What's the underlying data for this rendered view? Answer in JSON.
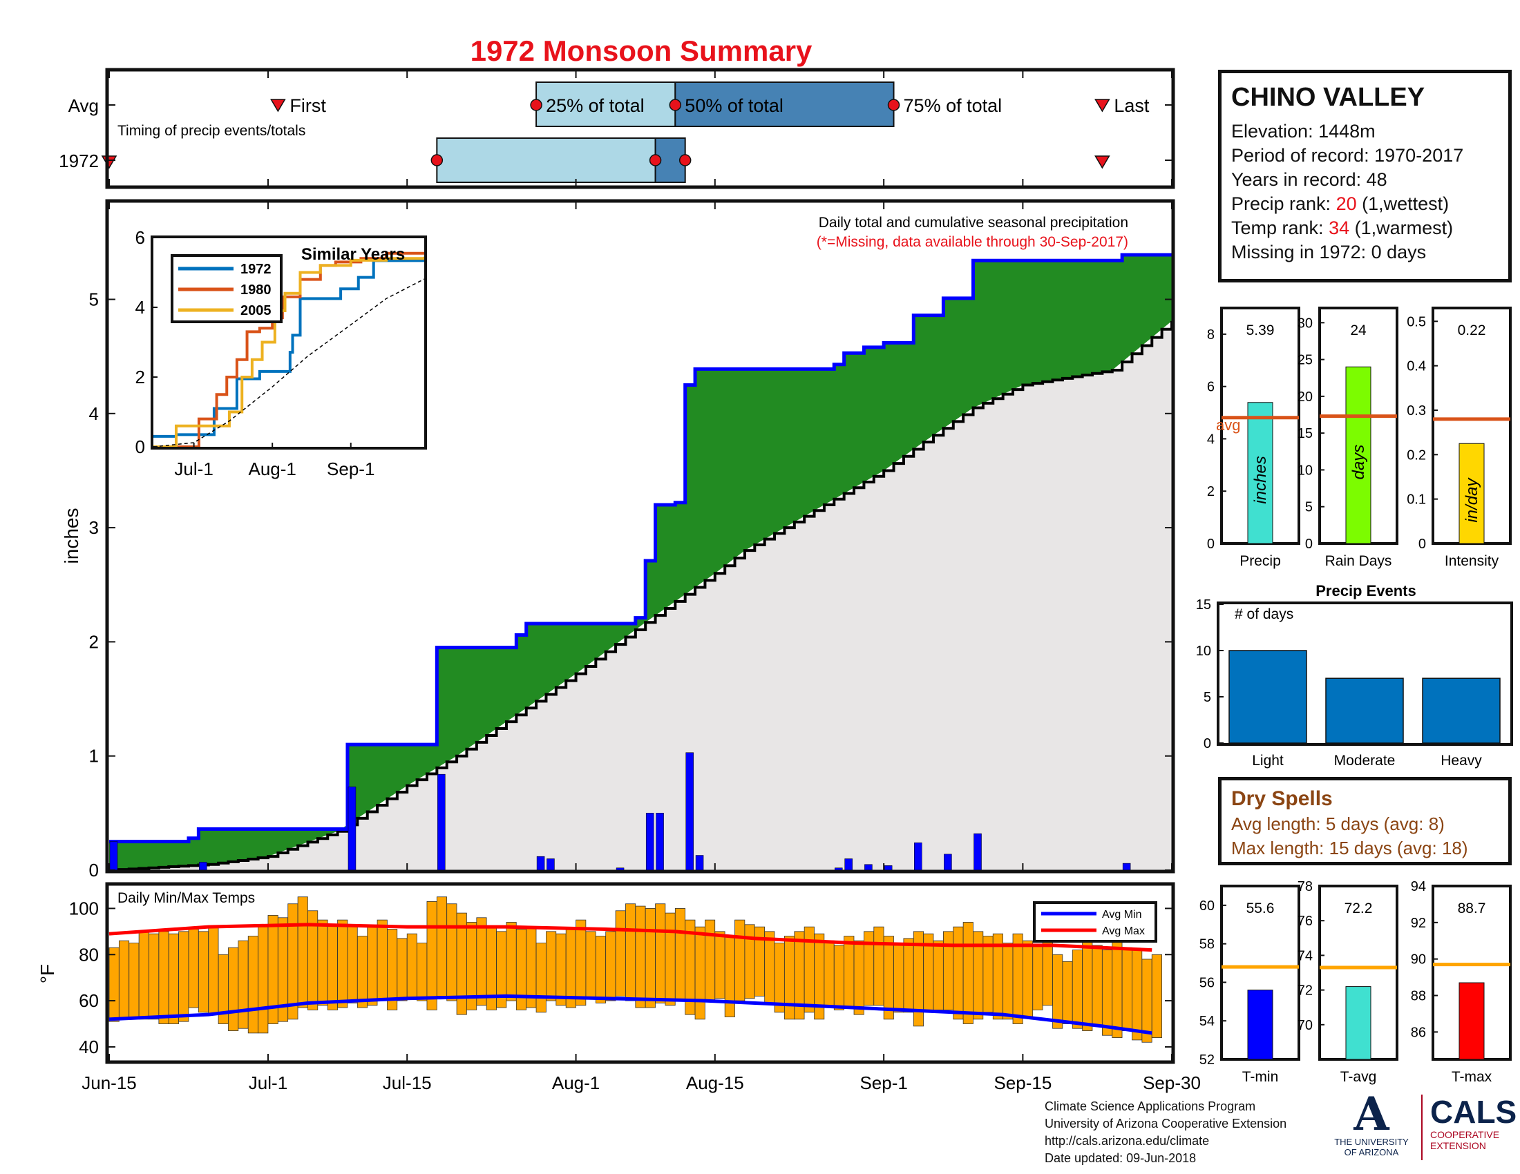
{
  "title": "1972 Monsoon Summary",
  "station": {
    "name": "CHINO VALLEY",
    "elevation_label": "Elevation:",
    "elevation": "1448m",
    "period_label": "Period of record:",
    "period": "1970-2017",
    "years_label": "Years in record:",
    "years": "48",
    "precip_rank_label": "Precip rank:",
    "precip_rank": "20",
    "precip_rank_note": "(1,wettest)",
    "temp_rank_label": "Temp rank:",
    "temp_rank": "34",
    "temp_rank_note": "(1,warmest)",
    "missing_label": "Missing in 1972:",
    "missing": "0 days"
  },
  "timing": {
    "row_avg": "Avg",
    "row_year": "1972",
    "note": "Timing of precip events/totals",
    "first": "First",
    "p25": "25% of total",
    "p50": "50% of total",
    "p75": "75% of total",
    "last": "Last"
  },
  "main_note": "Daily total and cumulative seasonal precipitation",
  "main_note2": "(*=Missing, data available through 30-Sep-2017)",
  "dry_spells": {
    "title": "Dry Spells",
    "avg": "Avg length: 5 days (avg: 8)",
    "max": "Max length: 15 days (avg: 18)"
  },
  "footer": {
    "line1": "Climate Science Applications Program",
    "line2": "University of Arizona Cooperative Extension",
    "line3": "http://cals.arizona.edu/climate",
    "line4": "Date updated: 09-Jun-2018"
  },
  "logos": {
    "ua_name_line1": "THE UNIVERSITY",
    "ua_name_line2": "OF ARIZONA",
    "cals": "CALS",
    "cals_line1": "COOPERATIVE",
    "cals_line2": "EXTENSION"
  },
  "colors": {
    "title": "#e8121b",
    "green": "#228b22",
    "blue_line": "#0000ff",
    "avg_orange": "#d95319",
    "temp_bar": "#ffa500",
    "event_bar": "#0072bd",
    "box_light": "#add8e6",
    "box_dark": "#4682b4"
  },
  "chart_data": [
    {
      "id": "timing",
      "type": "bar",
      "title": "Timing of precip events/totals",
      "date_range": [
        "2017-06-15",
        "2017-09-30"
      ],
      "rows": [
        {
          "name": "Avg",
          "first": "2017-07-02",
          "p25": "2017-07-28",
          "p50": "2017-08-11",
          "p75": "2017-09-02",
          "last": "2017-09-23"
        },
        {
          "name": "1972",
          "first": "2017-06-15",
          "p25": "2017-07-18",
          "p50": "2017-08-09",
          "p75": "2017-08-12",
          "last": "2017-09-23"
        }
      ]
    },
    {
      "id": "main",
      "type": "area",
      "ylabel": "inches",
      "ylim": [
        0,
        5.85
      ],
      "yticks": [
        0,
        1,
        2,
        3,
        4,
        5
      ],
      "xticks": [
        "Jun-15",
        "Jul-1",
        "Jul-15",
        "Aug-1",
        "Aug-15",
        "Sep-1",
        "Sep-15",
        "Sep-30"
      ],
      "xtick_dates": [
        "2017-06-15",
        "2017-07-01",
        "2017-07-15",
        "2017-08-01",
        "2017-08-15",
        "2017-09-01",
        "2017-09-15",
        "2017-09-30"
      ],
      "daily_precip": [
        [
          "2017-06-15",
          0.25
        ],
        [
          "2017-06-24",
          0.07
        ],
        [
          "2017-07-09",
          0.73
        ],
        [
          "2017-07-18",
          0.84
        ],
        [
          "2017-07-28",
          0.12
        ],
        [
          "2017-07-29",
          0.1
        ],
        [
          "2017-08-05",
          0.02
        ],
        [
          "2017-08-08",
          0.5
        ],
        [
          "2017-08-09",
          0.5
        ],
        [
          "2017-08-12",
          1.03
        ],
        [
          "2017-08-13",
          0.13
        ],
        [
          "2017-08-27",
          0.02
        ],
        [
          "2017-08-28",
          0.1
        ],
        [
          "2017-08-30",
          0.05
        ],
        [
          "2017-09-01",
          0.04
        ],
        [
          "2017-09-04",
          0.24
        ],
        [
          "2017-09-07",
          0.14
        ],
        [
          "2017-09-10",
          0.32
        ],
        [
          "2017-09-25",
          0.06
        ]
      ],
      "cumulative_1972": [
        [
          "2017-06-15",
          0.25
        ],
        [
          "2017-06-23",
          0.28
        ],
        [
          "2017-06-24",
          0.36
        ],
        [
          "2017-07-09",
          1.1
        ],
        [
          "2017-07-18",
          1.95
        ],
        [
          "2017-07-26",
          2.06
        ],
        [
          "2017-07-27",
          2.16
        ],
        [
          "2017-08-07",
          2.21
        ],
        [
          "2017-08-08",
          2.71
        ],
        [
          "2017-08-09",
          3.2
        ],
        [
          "2017-08-11",
          3.22
        ],
        [
          "2017-08-12",
          4.25
        ],
        [
          "2017-08-13",
          4.39
        ],
        [
          "2017-08-27",
          4.43
        ],
        [
          "2017-08-28",
          4.53
        ],
        [
          "2017-08-30",
          4.58
        ],
        [
          "2017-09-01",
          4.62
        ],
        [
          "2017-09-04",
          4.86
        ],
        [
          "2017-09-07",
          5.01
        ],
        [
          "2017-09-10",
          5.34
        ],
        [
          "2017-09-25",
          5.39
        ],
        [
          "2017-09-30",
          5.39
        ]
      ],
      "average_cumulative": [
        [
          "2017-06-15",
          0.0
        ],
        [
          "2017-06-25",
          0.05
        ],
        [
          "2017-07-01",
          0.12
        ],
        [
          "2017-07-08",
          0.34
        ],
        [
          "2017-07-15",
          0.74
        ],
        [
          "2017-07-20",
          1.0
        ],
        [
          "2017-08-01",
          1.72
        ],
        [
          "2017-08-08",
          2.17
        ],
        [
          "2017-08-15",
          2.6
        ],
        [
          "2017-08-18",
          2.8
        ],
        [
          "2017-08-25",
          3.15
        ],
        [
          "2017-09-01",
          3.5
        ],
        [
          "2017-09-05",
          3.75
        ],
        [
          "2017-09-10",
          4.05
        ],
        [
          "2017-09-15",
          4.25
        ],
        [
          "2017-09-24",
          4.38
        ],
        [
          "2017-09-30",
          4.81
        ]
      ]
    },
    {
      "id": "similar_years",
      "type": "line",
      "title": "Similar Years",
      "ylim": [
        0,
        6
      ],
      "yticks": [
        0,
        2,
        4,
        6
      ],
      "xticks": [
        "Jul-1",
        "Aug-1",
        "Sep-1"
      ],
      "xtick_dates": [
        "2017-07-01",
        "2017-08-01",
        "2017-09-01"
      ],
      "series": [
        {
          "name": "1972",
          "color": "#0072bd",
          "points": [
            [
              "2017-06-15",
              0.3
            ],
            [
              "2017-06-24",
              0.35
            ],
            [
              "2017-07-09",
              1.1
            ],
            [
              "2017-07-18",
              1.95
            ],
            [
              "2017-07-27",
              2.16
            ],
            [
              "2017-08-08",
              2.71
            ],
            [
              "2017-08-09",
              3.2
            ],
            [
              "2017-08-12",
              4.25
            ],
            [
              "2017-08-28",
              4.53
            ],
            [
              "2017-09-04",
              4.86
            ],
            [
              "2017-09-10",
              5.34
            ],
            [
              "2017-09-30",
              5.39
            ]
          ]
        },
        {
          "name": "1980",
          "color": "#d95319",
          "points": [
            [
              "2017-06-15",
              0.0
            ],
            [
              "2017-06-25",
              0.0
            ],
            [
              "2017-07-03",
              0.8
            ],
            [
              "2017-07-10",
              1.5
            ],
            [
              "2017-07-14",
              2.0
            ],
            [
              "2017-07-18",
              2.5
            ],
            [
              "2017-07-22",
              3.3
            ],
            [
              "2017-07-27",
              3.4
            ],
            [
              "2017-08-01",
              3.7
            ],
            [
              "2017-08-05",
              4.3
            ],
            [
              "2017-08-12",
              4.8
            ],
            [
              "2017-08-20",
              5.2
            ],
            [
              "2017-08-26",
              5.3
            ],
            [
              "2017-09-05",
              5.4
            ],
            [
              "2017-09-15",
              5.55
            ],
            [
              "2017-09-30",
              5.55
            ]
          ]
        },
        {
          "name": "2005",
          "color": "#edb120",
          "points": [
            [
              "2017-06-15",
              0.0
            ],
            [
              "2017-06-21",
              0.0
            ],
            [
              "2017-06-24",
              0.6
            ],
            [
              "2017-07-12",
              0.6
            ],
            [
              "2017-07-15",
              1.0
            ],
            [
              "2017-07-20",
              2.0
            ],
            [
              "2017-07-24",
              2.5
            ],
            [
              "2017-07-28",
              3.0
            ],
            [
              "2017-08-02",
              3.9
            ],
            [
              "2017-08-06",
              4.4
            ],
            [
              "2017-08-12",
              5.0
            ],
            [
              "2017-08-20",
              5.2
            ],
            [
              "2017-09-01",
              5.35
            ],
            [
              "2017-09-15",
              5.4
            ],
            [
              "2017-09-30",
              5.45
            ]
          ]
        },
        {
          "name": "avg",
          "color": "#000000",
          "dashed": true,
          "points": [
            [
              "2017-06-15",
              0.0
            ],
            [
              "2017-07-01",
              0.12
            ],
            [
              "2017-07-15",
              0.74
            ],
            [
              "2017-08-01",
              1.72
            ],
            [
              "2017-08-15",
              2.6
            ],
            [
              "2017-09-01",
              3.5
            ],
            [
              "2017-09-15",
              4.25
            ],
            [
              "2017-09-30",
              4.81
            ]
          ]
        }
      ]
    },
    {
      "id": "temps",
      "type": "bar",
      "title": "Daily Min/Max Temps",
      "ylabel": "°F",
      "ylim": [
        34,
        110
      ],
      "yticks": [
        40,
        60,
        80,
        100
      ],
      "legend": [
        "Avg Min",
        "Avg Max"
      ],
      "daily_max": [
        83,
        86,
        85,
        90,
        89,
        90,
        89,
        90,
        91,
        90,
        92,
        80,
        83,
        86,
        88,
        92,
        97,
        96,
        102,
        105,
        99,
        95,
        93,
        95,
        93,
        88,
        92,
        95,
        91,
        87,
        89,
        85,
        103,
        105,
        102,
        98,
        94,
        96,
        92,
        90,
        94,
        91,
        92,
        85,
        90,
        89,
        91,
        95,
        90,
        88,
        90,
        99,
        102,
        101,
        100,
        102,
        98,
        100,
        95,
        92,
        95,
        90,
        88,
        95,
        93,
        92,
        90,
        85,
        88,
        90,
        92,
        89,
        86,
        84,
        88,
        86,
        90,
        92,
        88,
        84,
        87,
        90,
        89,
        86,
        90,
        92,
        94,
        90,
        88,
        89,
        85,
        89,
        86,
        84,
        86,
        80,
        77,
        82,
        88,
        84,
        82,
        86,
        83,
        82,
        78,
        80
      ],
      "daily_min": [
        51,
        52,
        53,
        52,
        52,
        50,
        50,
        51,
        57,
        55,
        54,
        50,
        47,
        48,
        46,
        46,
        50,
        51,
        52,
        57,
        56,
        58,
        56,
        57,
        59,
        57,
        58,
        60,
        56,
        60,
        61,
        60,
        56,
        62,
        60,
        54,
        56,
        58,
        56,
        57,
        60,
        56,
        57,
        55,
        60,
        58,
        57,
        58,
        61,
        59,
        60,
        62,
        60,
        57,
        57,
        59,
        58,
        60,
        54,
        52,
        60,
        61,
        53,
        60,
        61,
        62,
        59,
        55,
        52,
        52,
        55,
        52,
        57,
        56,
        57,
        54,
        58,
        58,
        52,
        55,
        55,
        49,
        56,
        56,
        56,
        52,
        50,
        52,
        55,
        52,
        52,
        50,
        53,
        56,
        58,
        48,
        50,
        48,
        47,
        49,
        45,
        44,
        47,
        43,
        42,
        44
      ],
      "avg_max": [
        [
          0,
          89
        ],
        [
          10,
          92
        ],
        [
          20,
          93
        ],
        [
          30,
          92
        ],
        [
          40,
          92
        ],
        [
          50,
          91
        ],
        [
          57,
          90
        ],
        [
          65,
          87
        ],
        [
          75,
          85
        ],
        [
          85,
          84
        ],
        [
          95,
          84
        ],
        [
          105,
          82
        ]
      ],
      "avg_min": [
        [
          0,
          52
        ],
        [
          10,
          54
        ],
        [
          20,
          59
        ],
        [
          30,
          61
        ],
        [
          40,
          62
        ],
        [
          50,
          61
        ],
        [
          60,
          60
        ],
        [
          70,
          58
        ],
        [
          80,
          56
        ],
        [
          90,
          54
        ],
        [
          100,
          49
        ],
        [
          105,
          46
        ]
      ]
    },
    {
      "id": "precip_stats",
      "type": "bar",
      "panels": [
        {
          "category": "Precip",
          "value": 5.39,
          "value_label": "5.39",
          "avg": 4.81,
          "unit": "inches",
          "ylim": [
            0,
            9
          ],
          "yticks": [
            0,
            2,
            4,
            6,
            8
          ],
          "color": "#40e0d0",
          "avg_label": "avg"
        },
        {
          "category": "Rain Days",
          "value": 24,
          "value_label": "24",
          "avg": 17.3,
          "unit": "days",
          "ylim": [
            0,
            32
          ],
          "yticks": [
            0,
            5,
            10,
            15,
            20,
            25,
            30
          ],
          "color": "#7cfc00"
        },
        {
          "category": "Intensity",
          "value": 0.225,
          "value_label": "0.22",
          "avg": 0.28,
          "unit": "in/day",
          "ylim": [
            0,
            0.53
          ],
          "yticks": [
            0,
            0.1,
            0.2,
            0.3,
            0.4,
            0.5
          ],
          "color": "#ffd700"
        }
      ]
    },
    {
      "id": "precip_events",
      "type": "bar",
      "title": "Precip Events",
      "ylabel_note": "# of days",
      "categories": [
        "Light",
        "Moderate",
        "Heavy"
      ],
      "values": [
        10,
        7,
        7
      ],
      "ylim": [
        0,
        15
      ],
      "yticks": [
        0,
        5,
        10,
        15
      ]
    },
    {
      "id": "temp_stats",
      "type": "bar",
      "panels": [
        {
          "category": "T-min",
          "value": 55.6,
          "value_label": "55.6",
          "avg": 56.8,
          "ylim": [
            52,
            61
          ],
          "yticks": [
            52,
            54,
            56,
            58,
            60
          ],
          "color": "#0000ff"
        },
        {
          "category": "T-avg",
          "value": 72.2,
          "value_label": "72.2",
          "avg": 73.3,
          "ylim": [
            68,
            78
          ],
          "yticks": [
            70,
            72,
            74,
            76,
            78
          ],
          "color": "#40e0d0"
        },
        {
          "category": "T-max",
          "value": 88.7,
          "value_label": "88.7",
          "avg": 89.7,
          "ylim": [
            84.5,
            94
          ],
          "yticks": [
            86,
            88,
            90,
            92,
            94
          ],
          "color": "#ff0000"
        }
      ]
    }
  ]
}
